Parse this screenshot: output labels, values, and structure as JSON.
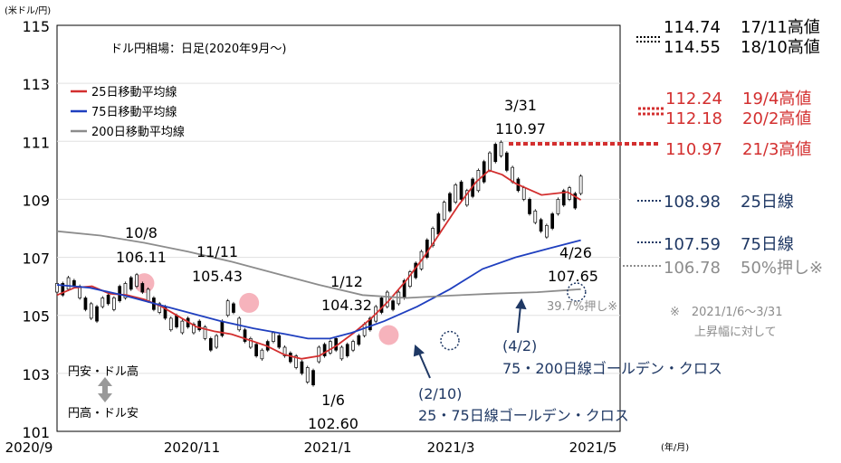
{
  "chart_data": {
    "type": "line",
    "title": "ドル円相場：日足(2020年9月～)",
    "ylabel_unit": "(米ドル/円)",
    "xlabel_unit": "(年/月)",
    "ylim": [
      101,
      115
    ],
    "yticks": [
      "115",
      "113",
      "111",
      "109",
      "107",
      "105",
      "103",
      "101"
    ],
    "xticks": [
      "2020/9",
      "2020/11",
      "2021/1",
      "2021/3",
      "2021/5"
    ],
    "legend": [
      "25日移動平均線",
      "75日移動平均線",
      "200日移動平均線"
    ],
    "colors": {
      "ma25": "#d32f2f",
      "ma75": "#1f3fbf",
      "ma200": "#8c8c8c",
      "candle": "#000000",
      "circle": "#f4a6b0",
      "navy": "#1f3864",
      "gray": "#8c8c8c"
    },
    "series": [
      {
        "name": "25日移動平均線",
        "values": [
          [
            0,
            105.7
          ],
          [
            8,
            105.95
          ],
          [
            16,
            106.0
          ],
          [
            24,
            105.75
          ],
          [
            32,
            105.7
          ],
          [
            40,
            105.55
          ],
          [
            48,
            105.3
          ],
          [
            56,
            104.95
          ],
          [
            64,
            104.6
          ],
          [
            72,
            104.45
          ],
          [
            80,
            104.35
          ],
          [
            88,
            104.15
          ],
          [
            96,
            103.95
          ],
          [
            104,
            103.65
          ],
          [
            112,
            103.5
          ],
          [
            120,
            103.6
          ],
          [
            128,
            103.95
          ],
          [
            136,
            104.4
          ],
          [
            144,
            104.9
          ],
          [
            152,
            105.5
          ],
          [
            160,
            106.2
          ],
          [
            168,
            107.0
          ],
          [
            176,
            107.9
          ],
          [
            184,
            108.8
          ],
          [
            192,
            109.6
          ],
          [
            198,
            110.0
          ],
          [
            204,
            109.85
          ],
          [
            210,
            109.55
          ],
          [
            216,
            109.35
          ],
          [
            222,
            109.15
          ],
          [
            228,
            109.2
          ],
          [
            234,
            109.25
          ],
          [
            240,
            108.98
          ]
        ]
      },
      {
        "name": "75日移動平均線",
        "values": [
          [
            0,
            106.05
          ],
          [
            15,
            105.95
          ],
          [
            30,
            105.7
          ],
          [
            45,
            105.4
          ],
          [
            60,
            105.1
          ],
          [
            75,
            104.8
          ],
          [
            90,
            104.55
          ],
          [
            105,
            104.35
          ],
          [
            115,
            104.2
          ],
          [
            125,
            104.2
          ],
          [
            135,
            104.4
          ],
          [
            150,
            104.8
          ],
          [
            165,
            105.3
          ],
          [
            180,
            105.9
          ],
          [
            195,
            106.6
          ],
          [
            210,
            107.0
          ],
          [
            225,
            107.3
          ],
          [
            240,
            107.59
          ]
        ]
      },
      {
        "name": "200日移動平均線",
        "values": [
          [
            0,
            107.9
          ],
          [
            20,
            107.75
          ],
          [
            40,
            107.5
          ],
          [
            60,
            107.2
          ],
          [
            80,
            106.85
          ],
          [
            100,
            106.45
          ],
          [
            120,
            106.05
          ],
          [
            140,
            105.7
          ],
          [
            160,
            105.6
          ],
          [
            180,
            105.68
          ],
          [
            200,
            105.75
          ],
          [
            220,
            105.8
          ],
          [
            240,
            105.9
          ]
        ]
      }
    ],
    "candles": [
      [
        105.8,
        106.1
      ],
      [
        105.7,
        106.1
      ],
      [
        105.9,
        106.3
      ],
      [
        106.0,
        106.2
      ],
      [
        105.6,
        106.0
      ],
      [
        105.2,
        105.6
      ],
      [
        104.9,
        105.4
      ],
      [
        104.8,
        105.3
      ],
      [
        105.3,
        105.6
      ],
      [
        105.4,
        105.7
      ],
      [
        105.2,
        105.6
      ],
      [
        105.5,
        106.0
      ],
      [
        105.6,
        106.1
      ],
      [
        105.9,
        106.3
      ],
      [
        106.0,
        106.4
      ],
      [
        105.8,
        106.1
      ],
      [
        105.5,
        105.9
      ],
      [
        105.2,
        105.6
      ],
      [
        105.1,
        105.4
      ],
      [
        104.9,
        105.3
      ],
      [
        104.5,
        104.9
      ],
      [
        104.6,
        105.0
      ],
      [
        104.4,
        104.8
      ],
      [
        104.6,
        104.9
      ],
      [
        104.4,
        104.7
      ],
      [
        104.5,
        104.8
      ],
      [
        104.2,
        104.6
      ],
      [
        103.8,
        104.2
      ],
      [
        103.9,
        104.3
      ],
      [
        104.3,
        104.8
      ],
      [
        105.0,
        105.5
      ],
      [
        105.1,
        105.4
      ],
      [
        104.5,
        104.9
      ],
      [
        104.1,
        104.5
      ],
      [
        103.9,
        104.2
      ],
      [
        103.6,
        104.0
      ],
      [
        103.5,
        103.8
      ],
      [
        103.8,
        104.1
      ],
      [
        104.1,
        104.4
      ],
      [
        103.9,
        104.3
      ],
      [
        103.6,
        103.9
      ],
      [
        103.4,
        103.7
      ],
      [
        103.2,
        103.6
      ],
      [
        103.0,
        103.4
      ],
      [
        102.7,
        103.2
      ],
      [
        102.6,
        103.1
      ],
      [
        103.4,
        103.9
      ],
      [
        103.6,
        104.0
      ],
      [
        103.7,
        104.1
      ],
      [
        103.8,
        104.2
      ],
      [
        103.5,
        103.9
      ],
      [
        103.6,
        104.0
      ],
      [
        103.8,
        104.1
      ],
      [
        104.0,
        104.3
      ],
      [
        104.3,
        104.7
      ],
      [
        104.5,
        104.9
      ],
      [
        104.8,
        105.3
      ],
      [
        105.1,
        105.6
      ],
      [
        105.3,
        105.8
      ],
      [
        105.2,
        105.5
      ],
      [
        105.4,
        105.8
      ],
      [
        105.6,
        106.2
      ],
      [
        106.0,
        106.5
      ],
      [
        106.3,
        106.8
      ],
      [
        106.6,
        107.2
      ],
      [
        107.0,
        107.6
      ],
      [
        107.4,
        108.0
      ],
      [
        107.8,
        108.5
      ],
      [
        108.3,
        108.9
      ],
      [
        108.6,
        109.2
      ],
      [
        108.9,
        109.5
      ],
      [
        109.0,
        109.6
      ],
      [
        108.8,
        109.3
      ],
      [
        109.1,
        109.7
      ],
      [
        109.3,
        110.0
      ],
      [
        109.6,
        110.3
      ],
      [
        110.0,
        110.6
      ],
      [
        110.3,
        110.9
      ],
      [
        110.5,
        110.97
      ],
      [
        110.0,
        110.6
      ],
      [
        109.6,
        110.1
      ],
      [
        109.3,
        109.7
      ],
      [
        109.0,
        109.4
      ],
      [
        108.5,
        109.0
      ],
      [
        108.2,
        108.6
      ],
      [
        107.9,
        108.3
      ],
      [
        107.7,
        108.1
      ],
      [
        108.0,
        108.5
      ],
      [
        108.5,
        109.0
      ],
      [
        108.8,
        109.3
      ],
      [
        109.0,
        109.4
      ],
      [
        108.7,
        109.2
      ],
      [
        109.2,
        109.8
      ]
    ],
    "circles": [
      {
        "x": 40,
        "y": 106.11
      },
      {
        "x": 88,
        "y": 105.43
      },
      {
        "x": 152,
        "y": 104.32
      }
    ],
    "cross_points": [
      {
        "x": 180,
        "y": 104.13
      },
      {
        "x": 238,
        "y": 105.8
      }
    ],
    "annotations": {
      "a1": {
        "date": "10/8",
        "value": "106.11"
      },
      "a2": {
        "date": "11/11",
        "value": "105.43"
      },
      "a3": {
        "date": "1/12",
        "value": "104.32"
      },
      "a4": {
        "date": "1/6",
        "value": "102.60"
      },
      "a5": {
        "date": "3/31",
        "value": "110.97"
      },
      "a6": {
        "date": "4/26",
        "value": "107.65"
      },
      "pct": "39.7%押し※",
      "gc1": {
        "date": "(2/10)",
        "label": "25・75日線ゴールデン・クロス"
      },
      "gc2": {
        "date": "(4/2)",
        "label": "75・200日線ゴールデン・クロス"
      },
      "weak": "円安・ドル高",
      "strong": "円高・ドル安",
      "note1": "※　2021/1/6～3/31",
      "note2": "上昇幅に対して"
    },
    "levels": [
      {
        "value": "114.74",
        "label": "17/11高値",
        "color": "#000000"
      },
      {
        "value": "114.55",
        "label": "18/10高値",
        "color": "#000000"
      },
      {
        "value": "112.24",
        "label": "19/4高値",
        "color": "#d32f2f"
      },
      {
        "value": "112.18",
        "label": "20/2高値",
        "color": "#d32f2f"
      },
      {
        "value": "110.97",
        "label": "21/3高値",
        "color": "#d32f2f"
      },
      {
        "value": "108.98",
        "label": "25日線",
        "color": "#1f3864"
      },
      {
        "value": "107.59",
        "label": "75日線",
        "color": "#1f3864"
      },
      {
        "value": "106.78",
        "label": "50%押し※",
        "color": "#8c8c8c"
      }
    ]
  }
}
